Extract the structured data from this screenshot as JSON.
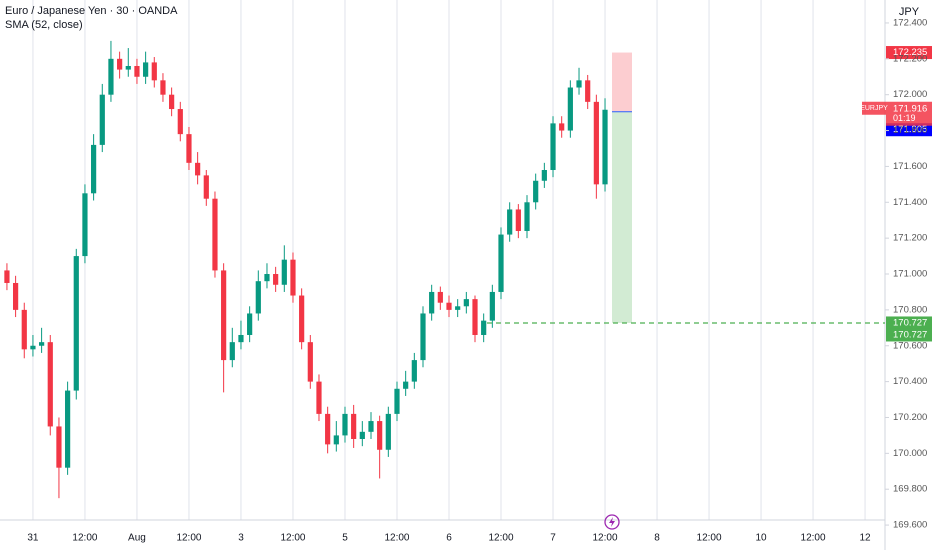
{
  "chart_data": {
    "type": "candlestick",
    "title": "Euro / Japanese Yen · 30 · OANDA",
    "indicator": "SMA (52, close)",
    "currency": "JPY",
    "up_color": "#089981",
    "down_color": "#f23645",
    "grid": "vertical",
    "x": [
      -6,
      -4,
      -2,
      0,
      2,
      4,
      6,
      8,
      10,
      12,
      14,
      16,
      18,
      20,
      22,
      24,
      26,
      28,
      30,
      32,
      34,
      36,
      38,
      40,
      42,
      44,
      46,
      48,
      50,
      52,
      54,
      56,
      58,
      60,
      62,
      64,
      66,
      68,
      70,
      72,
      74,
      76,
      78,
      80,
      82,
      84,
      86,
      88,
      90,
      92,
      94,
      96,
      98,
      100,
      102,
      104,
      106,
      108,
      110,
      112,
      114,
      116,
      118,
      120,
      122,
      124,
      126,
      128,
      130,
      132
    ],
    "open": [
      171.02,
      170.95,
      170.8,
      170.58,
      170.6,
      170.62,
      170.15,
      169.92,
      170.35,
      171.1,
      171.45,
      171.72,
      172.0,
      172.2,
      172.14,
      172.16,
      172.1,
      172.18,
      172.08,
      172.0,
      171.92,
      171.78,
      171.62,
      171.55,
      171.42,
      171.02,
      170.52,
      170.62,
      170.66,
      170.78,
      170.96,
      171.0,
      170.94,
      171.08,
      170.88,
      170.62,
      170.4,
      170.22,
      170.05,
      170.1,
      170.22,
      170.08,
      170.12,
      170.18,
      170.02,
      170.22,
      170.36,
      170.4,
      170.52,
      170.78,
      170.9,
      170.84,
      170.8,
      170.82,
      170.86,
      170.66,
      170.74,
      170.9,
      171.22,
      171.36,
      171.24,
      171.4,
      171.52,
      171.58,
      171.84,
      171.8,
      172.04,
      172.08,
      171.96,
      171.5
    ],
    "high": [
      171.06,
      170.99,
      170.84,
      170.66,
      170.7,
      170.66,
      170.2,
      170.4,
      171.14,
      171.5,
      171.78,
      172.06,
      172.3,
      172.24,
      172.26,
      172.2,
      172.24,
      172.21,
      172.12,
      172.04,
      171.96,
      171.82,
      171.68,
      171.58,
      171.46,
      171.06,
      170.7,
      170.74,
      170.82,
      171.02,
      171.06,
      171.04,
      171.16,
      171.12,
      170.92,
      170.66,
      170.44,
      170.26,
      170.18,
      170.26,
      170.27,
      170.18,
      170.23,
      170.21,
      170.26,
      170.4,
      170.46,
      170.56,
      170.82,
      170.94,
      170.93,
      170.88,
      170.86,
      170.9,
      170.88,
      170.78,
      170.94,
      171.26,
      171.4,
      171.39,
      171.44,
      171.56,
      171.62,
      171.88,
      171.88,
      172.08,
      172.15,
      172.11,
      172.0,
      171.98
    ],
    "low": [
      170.91,
      170.76,
      170.53,
      170.54,
      170.56,
      170.1,
      169.75,
      169.88,
      170.3,
      171.06,
      171.41,
      171.68,
      171.96,
      172.09,
      172.1,
      172.06,
      172.06,
      172.04,
      171.96,
      171.88,
      171.74,
      171.58,
      171.5,
      171.38,
      170.98,
      170.34,
      170.48,
      170.58,
      170.62,
      170.74,
      170.92,
      170.9,
      170.9,
      170.84,
      170.58,
      170.36,
      170.18,
      170.0,
      170.01,
      170.06,
      170.03,
      170.04,
      170.08,
      169.86,
      169.98,
      170.18,
      170.32,
      170.36,
      170.48,
      170.74,
      170.8,
      170.76,
      170.76,
      170.78,
      170.62,
      170.62,
      170.7,
      170.86,
      171.18,
      171.2,
      171.2,
      171.36,
      171.48,
      171.54,
      171.76,
      171.76,
      172.0,
      171.92,
      171.42,
      171.46
    ],
    "close": [
      170.95,
      170.8,
      170.58,
      170.6,
      170.62,
      170.15,
      169.92,
      170.35,
      171.1,
      171.45,
      171.72,
      172.0,
      172.2,
      172.14,
      172.16,
      172.1,
      172.18,
      172.08,
      172.0,
      171.92,
      171.78,
      171.62,
      171.55,
      171.42,
      171.02,
      170.52,
      170.62,
      170.66,
      170.78,
      170.96,
      171.0,
      170.94,
      171.08,
      170.88,
      170.62,
      170.4,
      170.22,
      170.05,
      170.1,
      170.22,
      170.08,
      170.12,
      170.18,
      170.02,
      170.22,
      170.36,
      170.4,
      170.52,
      170.78,
      170.9,
      170.84,
      170.8,
      170.82,
      170.86,
      170.66,
      170.74,
      170.9,
      171.22,
      171.36,
      171.24,
      171.4,
      171.52,
      171.58,
      171.84,
      171.8,
      172.04,
      172.08,
      171.96,
      171.5,
      171.916
    ],
    "xlim": [
      -7.6,
      196.6
    ],
    "xticks": [
      {
        "value": 0,
        "label": "31"
      },
      {
        "value": 12,
        "label": "12:00"
      },
      {
        "value": 24,
        "label": "Aug"
      },
      {
        "value": 36,
        "label": "12:00"
      },
      {
        "value": 48,
        "label": "3"
      },
      {
        "value": 60,
        "label": "12:00"
      },
      {
        "value": 72,
        "label": "5"
      },
      {
        "value": 84,
        "label": "12:00"
      },
      {
        "value": 96,
        "label": "6"
      },
      {
        "value": 108,
        "label": "12:00"
      },
      {
        "value": 120,
        "label": "7"
      },
      {
        "value": 132,
        "label": "12:00"
      },
      {
        "value": 144,
        "label": "8"
      },
      {
        "value": 156,
        "label": "12:00"
      },
      {
        "value": 168,
        "label": "10"
      },
      {
        "value": 180,
        "label": "12:00"
      },
      {
        "value": 192,
        "label": "12"
      }
    ],
    "ylim": [
      169.461,
      172.528
    ],
    "yticks": [
      {
        "value": 172.4,
        "label": "172.400"
      },
      {
        "value": 172.2,
        "label": "172.200"
      },
      {
        "value": 172.0,
        "label": "172.000"
      },
      {
        "value": 171.8,
        "label": "171.800"
      },
      {
        "value": 171.6,
        "label": "171.600"
      },
      {
        "value": 171.4,
        "label": "171.400"
      },
      {
        "value": 171.2,
        "label": "171.200"
      },
      {
        "value": 171.0,
        "label": "171.000"
      },
      {
        "value": 170.8,
        "label": "170.800"
      },
      {
        "value": 170.6,
        "label": "170.600"
      },
      {
        "value": 170.4,
        "label": "170.400"
      },
      {
        "value": 170.2,
        "label": "170.200"
      },
      {
        "value": 170.0,
        "label": "170.000"
      },
      {
        "value": 169.8,
        "label": "169.800"
      },
      {
        "value": 169.6,
        "label": "169.600"
      }
    ],
    "position": {
      "stop": 172.235,
      "entry": 171.905,
      "target": 170.727
    },
    "line_level": 170.727,
    "last_price": {
      "symbol": "EURJPY",
      "value": 171.916,
      "countdown": "01:19"
    }
  }
}
